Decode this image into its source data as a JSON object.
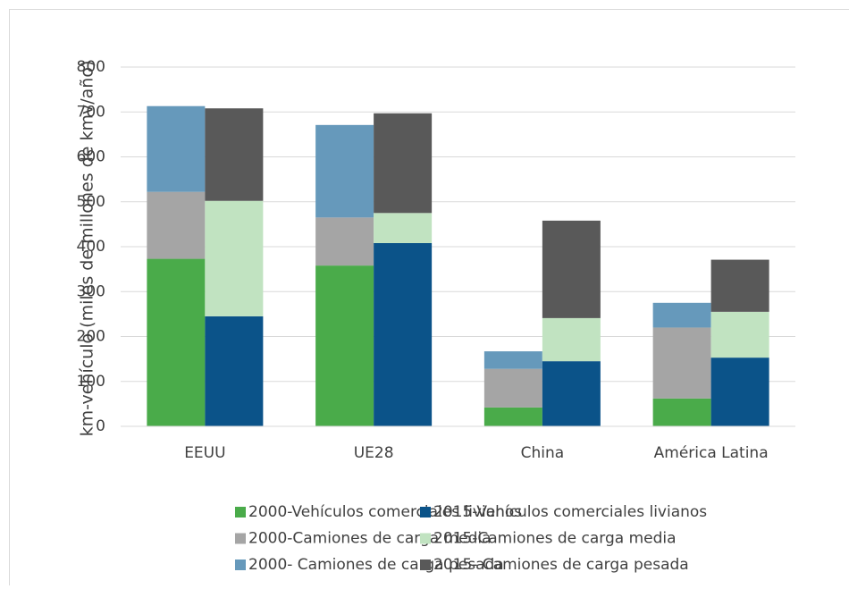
{
  "chart_data": {
    "type": "bar",
    "y_label": "km-vehículo (miles de millones de kmv/año)",
    "categories": [
      "EEUU",
      "UE28",
      "China",
      "América Latina"
    ],
    "series": [
      {
        "name": "2000-Vehículos comerciales livianos",
        "color": "#4aab4a",
        "values": [
          373,
          358,
          42,
          62
        ]
      },
      {
        "name": "2015-Vehículos comerciales livianos",
        "color": "#0b5389",
        "values": [
          245,
          408,
          145,
          153
        ]
      },
      {
        "name": "2000-Camiones de carga media",
        "color": "#a5a5a5",
        "values": [
          149,
          107,
          86,
          158
        ]
      },
      {
        "name": "2015-Camiones de carga media",
        "color": "#c1e3c1",
        "values": [
          257,
          67,
          96,
          102
        ]
      },
      {
        "name": "2000- Camiones de carga pesada",
        "color": "#6699bb",
        "values": [
          191,
          206,
          39,
          55
        ]
      },
      {
        "name": "2015- Camiones de carga pesada",
        "color": "#595959",
        "values": [
          206,
          222,
          217,
          116
        ]
      }
    ],
    "ylim": [
      0,
      800
    ],
    "yticks": [
      0,
      100,
      200,
      300,
      400,
      500,
      600,
      700,
      800
    ],
    "grid": true
  }
}
